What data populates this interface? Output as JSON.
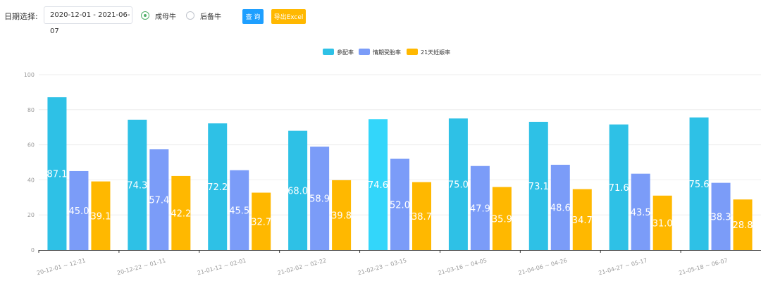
{
  "toolbar": {
    "date_label": "日期选择:",
    "date_range": "2020-12-01 - 2021-06-07",
    "radio_adult": "成母牛",
    "radio_heifer": "后备牛",
    "query_label": "查 询",
    "export_label": "导出Excel"
  },
  "colors": {
    "series": [
      "#2ec1e6",
      "#7b9cf8",
      "#ffb800"
    ],
    "highlight": "#33d6fa",
    "axis": "#999999",
    "grid": "#eeeeee",
    "value_label": "#ffffff"
  },
  "chart_data": {
    "type": "bar",
    "title": "",
    "xlabel": "",
    "ylabel": "",
    "ylim": [
      0,
      100
    ],
    "yticks": [
      0,
      20,
      40,
      60,
      80,
      100
    ],
    "grid": true,
    "legend_position": "top-center",
    "categories": [
      "20-12-01 ~ 12-21",
      "20-12-22 ~ 01-11",
      "21-01-12 ~ 02-01",
      "21-02-02 ~ 02-22",
      "21-02-23 ~ 03-15",
      "21-03-16 ~ 04-05",
      "21-04-06 ~ 04-26",
      "21-04-27 ~ 05-17",
      "21-05-18 ~ 06-07"
    ],
    "series": [
      {
        "name": "参配率",
        "values": [
          87.1,
          74.3,
          72.2,
          68.0,
          74.6,
          75.0,
          73.1,
          71.6,
          75.6
        ],
        "labels": [
          "87.1",
          "74.3",
          "72.2",
          "68.0",
          "74.6",
          "75.0",
          "73.1",
          "71.6",
          "75.6"
        ]
      },
      {
        "name": "情期受胎率",
        "values": [
          45.0,
          57.4,
          45.5,
          58.9,
          52.0,
          47.9,
          48.6,
          43.5,
          38.3
        ],
        "labels": [
          "45.0",
          "57.4",
          "45.5",
          "58.9",
          "52.0",
          "47.9",
          "48.6",
          "43.5",
          "38.3"
        ]
      },
      {
        "name": "21天妊娠率",
        "values": [
          39.1,
          42.2,
          32.7,
          39.8,
          38.7,
          35.9,
          34.7,
          31.0,
          28.8
        ],
        "labels": [
          "39.1",
          "42.2",
          "32.7",
          "39.8",
          "38.7",
          "35.9",
          "34.7",
          "31.0",
          "28.8"
        ]
      }
    ],
    "highlighted_category_index": 4
  }
}
